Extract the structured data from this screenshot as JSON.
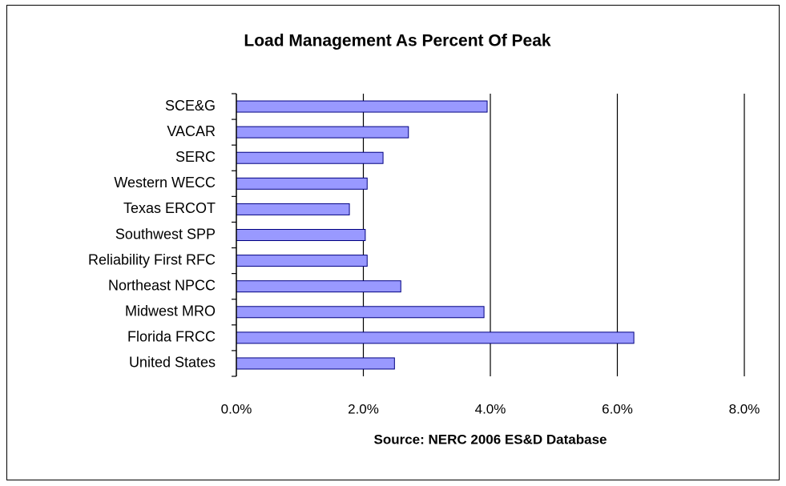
{
  "chart_data": {
    "type": "bar",
    "orientation": "horizontal",
    "title": "Load Management As Percent Of Peak",
    "x_label": "Source: NERC 2006 ES&D Database",
    "categories": [
      "SCE&G",
      "VACAR",
      "SERC",
      "Western WECC",
      "Texas ERCOT",
      "Southwest SPP",
      "Reliability First RFC",
      "Northeast NPCC",
      "Midwest MRO",
      "Florida FRCC",
      "United States"
    ],
    "values": [
      3.95,
      2.71,
      2.31,
      2.06,
      1.78,
      2.03,
      2.06,
      2.59,
      3.9,
      6.26,
      2.49
    ],
    "color": "#9999ff",
    "xlim": [
      0,
      8
    ],
    "xticks": [
      {
        "value": 0,
        "label": "0.0%"
      },
      {
        "value": 2,
        "label": "2.0%"
      },
      {
        "value": 4,
        "label": "4.0%"
      },
      {
        "value": 6,
        "label": "6.0%"
      },
      {
        "value": 8,
        "label": "8.0%"
      }
    ],
    "grid": true
  }
}
